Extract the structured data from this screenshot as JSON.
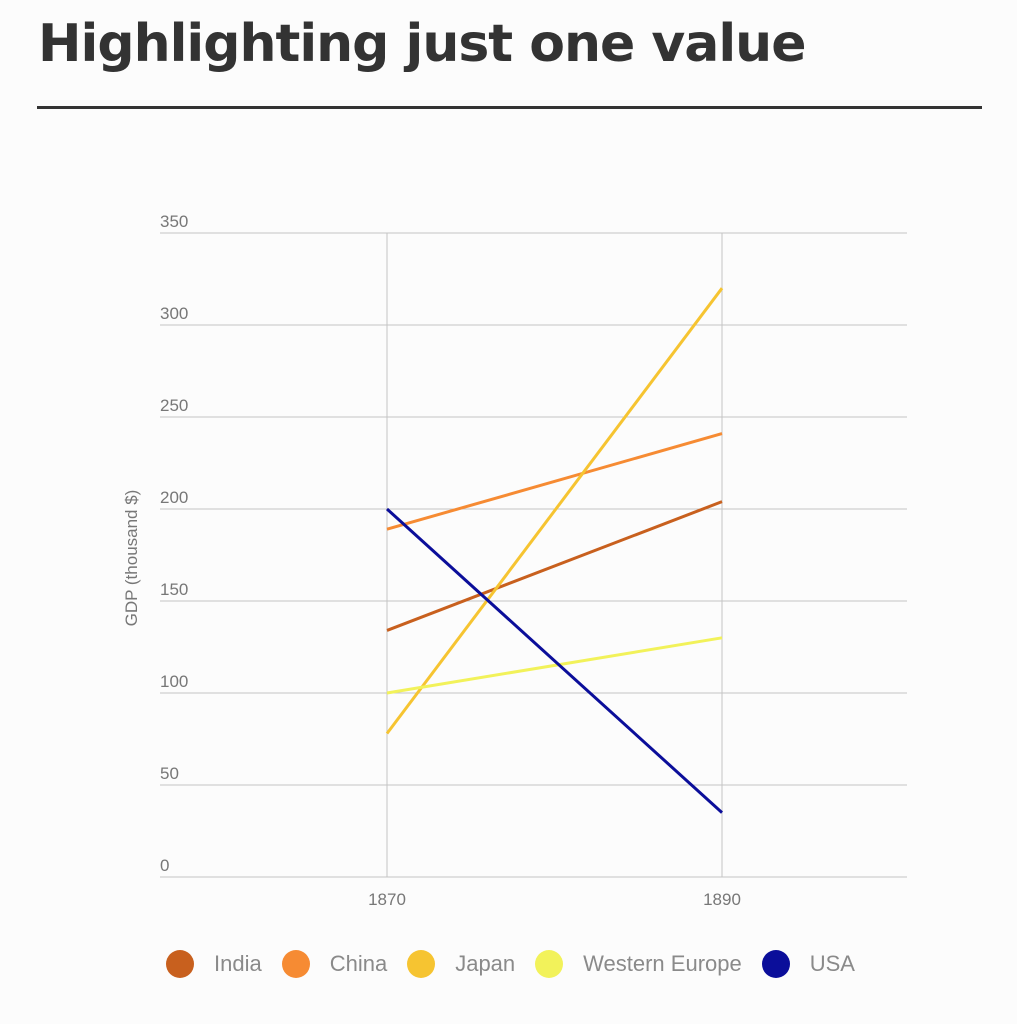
{
  "page": {
    "title": "Highlighting just one value"
  },
  "chart_data": {
    "type": "line",
    "x": [
      "1870",
      "1890"
    ],
    "ylabel": "GDP (thousand $)",
    "ylim": [
      0,
      350
    ],
    "yticks": [
      0,
      50,
      100,
      150,
      200,
      250,
      300,
      350
    ],
    "grid": true,
    "legend_position": "bottom",
    "series": [
      {
        "name": "India",
        "color": "#c8601e",
        "values": [
          134,
          204
        ]
      },
      {
        "name": "China",
        "color": "#f68b33",
        "values": [
          189,
          241
        ]
      },
      {
        "name": "Japan",
        "color": "#f6c431",
        "values": [
          78,
          320
        ]
      },
      {
        "name": "Western Europe",
        "color": "#f2f25a",
        "values": [
          100,
          130
        ]
      },
      {
        "name": "USA",
        "color": "#0b0e9a",
        "values": [
          200,
          35
        ]
      }
    ]
  }
}
